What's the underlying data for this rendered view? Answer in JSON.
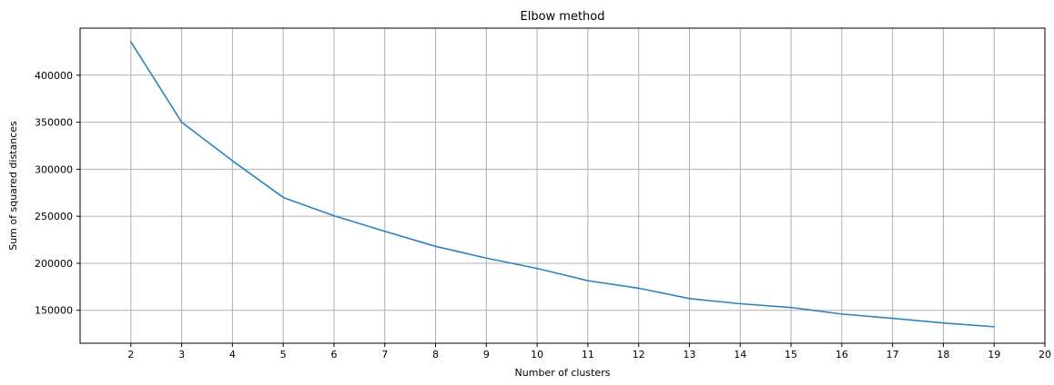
{
  "chart_data": {
    "type": "line",
    "title": "Elbow method",
    "xlabel": "Number of clusters",
    "ylabel": "Sum of squared distances",
    "xlim": [
      1,
      20
    ],
    "ylim": [
      115000,
      450000
    ],
    "x_ticks": [
      2,
      3,
      4,
      5,
      6,
      7,
      8,
      9,
      10,
      11,
      12,
      13,
      14,
      15,
      16,
      17,
      18,
      19,
      20
    ],
    "y_ticks": [
      150000,
      200000,
      250000,
      300000,
      350000,
      400000
    ],
    "grid": true,
    "series": [
      {
        "x": [
          2,
          3,
          4,
          5,
          6,
          7,
          8,
          9,
          10,
          11,
          12,
          13,
          14,
          15,
          16,
          17,
          18,
          19
        ],
        "values": [
          435500,
          350000,
          309000,
          270000,
          250500,
          234000,
          218000,
          205500,
          194500,
          181500,
          173500,
          162500,
          157000,
          153000,
          146000,
          141500,
          136500,
          132500
        ]
      }
    ],
    "colors": {
      "line": "#2b83c0",
      "grid": "#b0b0b0",
      "axis": "#000000"
    }
  }
}
